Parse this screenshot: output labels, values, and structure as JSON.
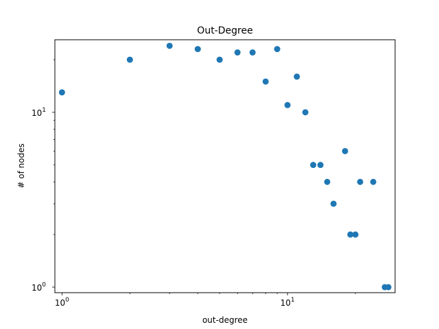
{
  "chart_data": {
    "type": "scatter",
    "title": "Out-Degree",
    "xlabel": "out-degree",
    "ylabel": "# of nodes",
    "xscale": "log",
    "yscale": "log",
    "xlim": [
      0.93,
      30
    ],
    "ylim": [
      0.93,
      26
    ],
    "grid": false,
    "marker_color": "#1f77b4",
    "x_ticks": [
      {
        "value": 1,
        "base": "10",
        "exp": "0"
      },
      {
        "value": 10,
        "base": "10",
        "exp": "1"
      }
    ],
    "y_ticks": [
      {
        "value": 1,
        "base": "10",
        "exp": "0"
      },
      {
        "value": 10,
        "base": "10",
        "exp": "1"
      }
    ],
    "points": [
      {
        "x": 1,
        "y": 13
      },
      {
        "x": 2,
        "y": 20
      },
      {
        "x": 3,
        "y": 24
      },
      {
        "x": 4,
        "y": 23
      },
      {
        "x": 5,
        "y": 20
      },
      {
        "x": 6,
        "y": 22
      },
      {
        "x": 7,
        "y": 22
      },
      {
        "x": 8,
        "y": 15
      },
      {
        "x": 9,
        "y": 23
      },
      {
        "x": 10,
        "y": 11
      },
      {
        "x": 11,
        "y": 16
      },
      {
        "x": 12,
        "y": 10
      },
      {
        "x": 13,
        "y": 5
      },
      {
        "x": 14,
        "y": 5
      },
      {
        "x": 15,
        "y": 4
      },
      {
        "x": 16,
        "y": 3
      },
      {
        "x": 18,
        "y": 6
      },
      {
        "x": 19,
        "y": 2
      },
      {
        "x": 20,
        "y": 2
      },
      {
        "x": 21,
        "y": 4
      },
      {
        "x": 24,
        "y": 4
      },
      {
        "x": 27,
        "y": 1
      },
      {
        "x": 28,
        "y": 1
      }
    ]
  }
}
